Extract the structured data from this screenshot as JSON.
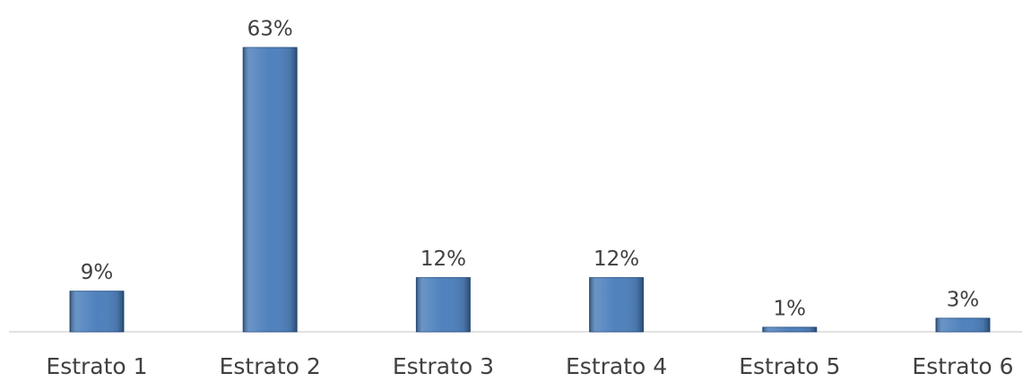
{
  "chart_data": {
    "type": "bar",
    "categories": [
      "Estrato 1",
      "Estrato 2",
      "Estrato 3",
      "Estrato 4",
      "Estrato 5",
      "Estrato 6"
    ],
    "values": [
      9,
      63,
      12,
      12,
      1,
      3
    ],
    "value_labels": [
      "9%",
      "63%",
      "12%",
      "12%",
      "1%",
      "3%"
    ],
    "color": "#4f81bd"
  }
}
